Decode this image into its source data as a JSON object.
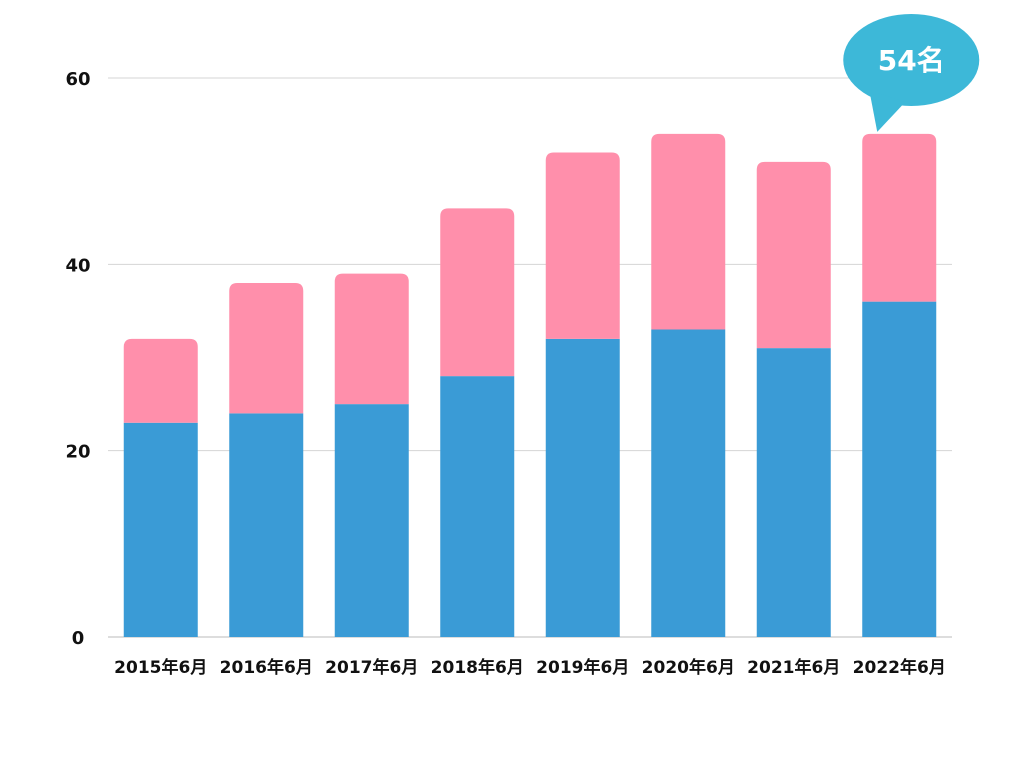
{
  "chart_data": {
    "type": "bar",
    "stacked": true,
    "categories": [
      "2015年6月",
      "2016年6月",
      "2017年6月",
      "2018年6月",
      "2019年6月",
      "2020年6月",
      "2021年6月",
      "2022年6月"
    ],
    "series": [
      {
        "values": [
          23,
          24,
          25,
          28,
          32,
          33,
          31,
          36
        ],
        "color": "#3a9bd6"
      },
      {
        "values": [
          9,
          14,
          14,
          18,
          20,
          21,
          20,
          18
        ],
        "color": "#ff8fab"
      }
    ],
    "ylim": [
      0,
      60
    ],
    "yticks": [
      "0",
      "20",
      "40",
      "60"
    ],
    "grid": true,
    "annotation": {
      "text": "54名",
      "category": "2022年6月",
      "color": "#3db8d8"
    }
  }
}
